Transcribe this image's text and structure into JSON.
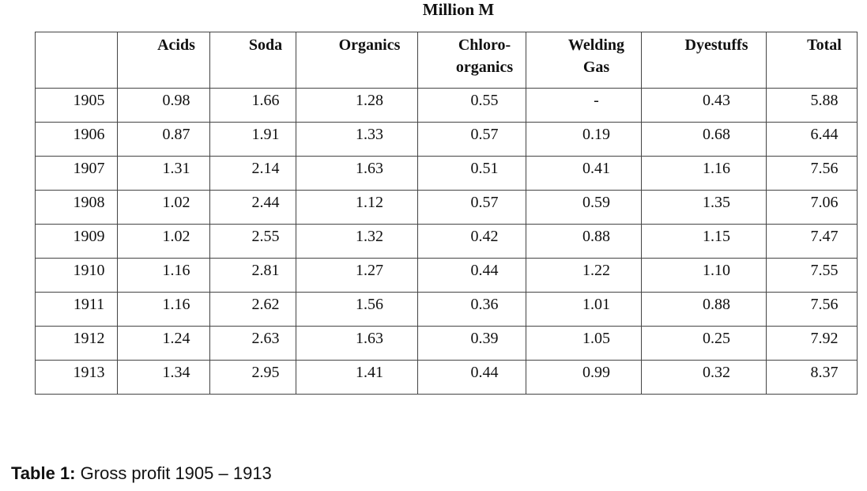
{
  "unit": "Million M",
  "table": {
    "header": [
      "",
      "Acids",
      "Soda",
      "Organics",
      [
        "Chloro-",
        "organics"
      ],
      [
        "Welding",
        "Gas"
      ],
      "Dyestuffs",
      "Total"
    ],
    "rows": [
      [
        "1905",
        "0.98",
        "1.66",
        "1.28",
        "0.55",
        "-",
        "0.43",
        "5.88"
      ],
      [
        "1906",
        "0.87",
        "1.91",
        "1.33",
        "0.57",
        "0.19",
        "0.68",
        "6.44"
      ],
      [
        "1907",
        "1.31",
        "2.14",
        "1.63",
        "0.51",
        "0.41",
        "1.16",
        "7.56"
      ],
      [
        "1908",
        "1.02",
        "2.44",
        "1.12",
        "0.57",
        "0.59",
        "1.35",
        "7.06"
      ],
      [
        "1909",
        "1.02",
        "2.55",
        "1.32",
        "0.42",
        "0.88",
        "1.15",
        "7.47"
      ],
      [
        "1910",
        "1.16",
        "2.81",
        "1.27",
        "0.44",
        "1.22",
        "1.10",
        "7.55"
      ],
      [
        "1911",
        "1.16",
        "2.62",
        "1.56",
        "0.36",
        "1.01",
        "0.88",
        "7.56"
      ],
      [
        "1912",
        "1.24",
        "2.63",
        "1.63",
        "0.39",
        "1.05",
        "0.25",
        "7.92"
      ],
      [
        "1913",
        "1.34",
        "2.95",
        "1.41",
        "0.44",
        "0.99",
        "0.32",
        "8.37"
      ]
    ]
  },
  "caption": {
    "label": "Table 1:",
    "text": "Gross profit 1905 – 1913"
  }
}
